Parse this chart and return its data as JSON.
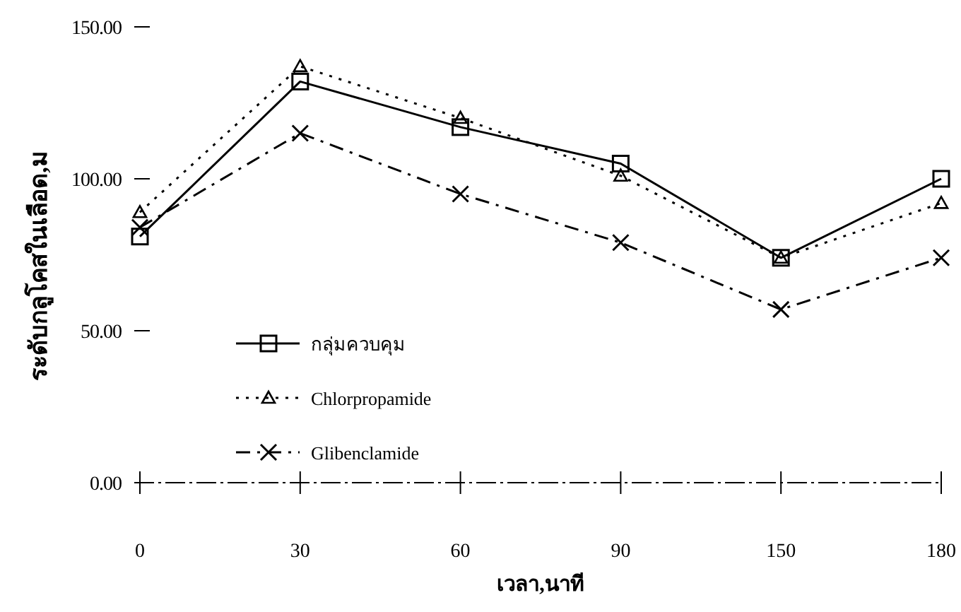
{
  "chart_data": {
    "type": "line",
    "xlabel": "เวลา,นาที",
    "ylabel": "ระดับกลูโคสในเลือด,ม",
    "categories": [
      "0",
      "30",
      "60",
      "90",
      "150",
      "180"
    ],
    "ylim": [
      0,
      150
    ],
    "yticks": [
      {
        "value": 0,
        "label": "0.00"
      },
      {
        "value": 50,
        "label": "50.00"
      },
      {
        "value": 100,
        "label": "100.00"
      },
      {
        "value": 150,
        "label": "150.00"
      }
    ],
    "legend": "bottom left",
    "series": [
      {
        "name": "กลุ่มควบคุม",
        "color": "#000000",
        "marker": "square",
        "line_style": "solid",
        "values": [
          81,
          132,
          117,
          105,
          74,
          100
        ]
      },
      {
        "name": "Chlorpropamide",
        "color": "#000000",
        "marker": "triangle",
        "line_style": "dotted",
        "values": [
          89,
          137,
          120,
          101,
          74,
          92
        ]
      },
      {
        "name": "Glibenclamide",
        "color": "#000000",
        "marker": "cross",
        "line_style": "dashdot",
        "values": [
          84,
          115,
          95,
          79,
          57,
          74
        ]
      }
    ]
  }
}
